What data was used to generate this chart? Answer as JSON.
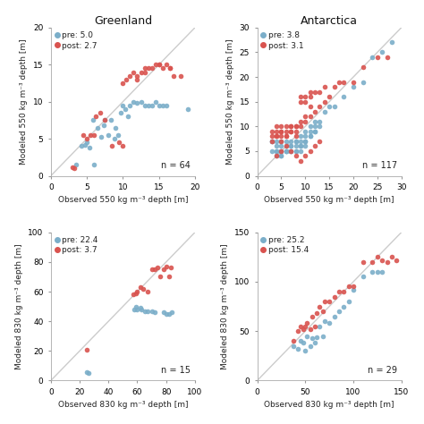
{
  "pre_color": "#7baec9",
  "post_color": "#d9534f",
  "background": "#ffffff",
  "panels": [
    {
      "title": "Greenland",
      "pre_label": "pre: 5.0",
      "post_label": "post: 2.7",
      "n_label": "n = 64",
      "xlim": [
        0,
        20
      ],
      "ylim": [
        0,
        20
      ],
      "xticks": [
        0,
        5,
        10,
        15,
        20
      ],
      "yticks": [
        0,
        5,
        10,
        15,
        20
      ],
      "xlabel": "Observed 550 kg m⁻³ depth [m]",
      "ylabel": "Modeled 550 kg m⁻³ depth [m]",
      "pre_x": [
        3.5,
        4.2,
        4.8,
        5.0,
        5.3,
        5.8,
        6.0,
        6.5,
        7.0,
        7.3,
        7.5,
        8.0,
        8.3,
        8.8,
        9.0,
        9.3,
        9.7,
        10.0,
        10.3,
        10.7,
        11.0,
        11.5,
        12.0,
        12.5,
        13.0,
        13.5,
        14.0,
        14.5,
        15.0,
        15.5,
        16.0,
        19.0
      ],
      "pre_y": [
        1.5,
        4.0,
        4.2,
        4.5,
        3.8,
        7.5,
        1.5,
        6.5,
        5.2,
        6.8,
        7.5,
        5.5,
        7.5,
        5.0,
        6.5,
        5.5,
        8.5,
        9.5,
        9.0,
        8.0,
        9.5,
        10.0,
        9.8,
        10.0,
        9.5,
        9.5,
        9.5,
        10.0,
        9.5,
        9.5,
        9.5,
        9.0
      ],
      "post_x": [
        3.0,
        3.2,
        4.5,
        5.0,
        5.5,
        6.2,
        6.8,
        7.5,
        8.5,
        9.5,
        10.0,
        10.5,
        11.0,
        11.5,
        12.0,
        12.5,
        13.0,
        13.5,
        14.0,
        14.5,
        15.0,
        15.5,
        16.0,
        16.5,
        17.0,
        18.0,
        10.0,
        12.0,
        13.0,
        15.0,
        16.5,
        6.0
      ],
      "post_y": [
        1.2,
        1.0,
        5.5,
        5.0,
        5.5,
        8.0,
        8.5,
        7.5,
        4.0,
        4.5,
        12.5,
        13.0,
        13.5,
        14.0,
        13.5,
        14.0,
        14.0,
        14.5,
        14.5,
        15.0,
        15.0,
        14.5,
        15.0,
        14.5,
        13.5,
        13.5,
        4.0,
        13.0,
        14.5,
        15.0,
        14.5,
        5.5
      ]
    },
    {
      "title": "Antarctica",
      "pre_label": "pre: 3.8",
      "post_label": "post: 3.1",
      "n_label": "n = 117",
      "xlim": [
        0,
        30
      ],
      "ylim": [
        0,
        30
      ],
      "xticks": [
        0,
        5,
        10,
        15,
        20,
        25,
        30
      ],
      "yticks": [
        0,
        5,
        10,
        15,
        20,
        25,
        30
      ],
      "xlabel": "Observed 550 kg m⁻³ depth [m]",
      "ylabel": "Modeled 550 kg m⁻³ depth [m]",
      "pre_x": [
        3,
        3,
        4,
        4,
        4,
        5,
        5,
        5,
        5,
        6,
        6,
        6,
        7,
        7,
        7,
        8,
        8,
        8,
        9,
        9,
        9,
        10,
        10,
        10,
        11,
        11,
        12,
        12,
        13,
        14,
        15,
        16,
        18,
        20,
        22,
        24,
        26,
        28,
        4,
        5,
        6,
        7,
        8,
        9,
        10,
        11,
        12,
        13,
        3,
        4,
        5,
        6,
        7,
        8,
        9,
        10,
        11,
        12
      ],
      "pre_y": [
        5,
        7,
        5,
        6,
        7,
        4,
        5,
        6,
        7,
        5,
        6,
        7,
        5,
        6,
        7,
        5,
        6,
        7,
        5,
        6,
        7,
        6,
        7,
        8,
        8,
        9,
        9,
        10,
        11,
        13,
        14,
        14,
        16,
        18,
        19,
        24,
        25,
        27,
        4,
        4,
        5,
        5,
        5,
        6,
        7,
        8,
        9,
        10,
        7,
        5,
        5,
        5,
        6,
        7,
        8,
        9,
        10,
        11
      ],
      "post_x": [
        3,
        3,
        4,
        4,
        5,
        5,
        5,
        6,
        6,
        7,
        7,
        8,
        8,
        9,
        9,
        10,
        10,
        11,
        11,
        12,
        13,
        14,
        15,
        16,
        17,
        18,
        20,
        22,
        25,
        27,
        4,
        5,
        6,
        7,
        8,
        9,
        10,
        11,
        12,
        13,
        14,
        3,
        4,
        5,
        6,
        7,
        8,
        9,
        10,
        11,
        4,
        5,
        6,
        7,
        8,
        9,
        10,
        11,
        12,
        13
      ],
      "post_y": [
        8,
        9,
        9,
        10,
        8,
        9,
        10,
        9,
        10,
        9,
        10,
        8,
        9,
        15,
        16,
        15,
        16,
        16,
        17,
        17,
        17,
        18,
        16,
        18,
        19,
        19,
        19,
        22,
        24,
        24,
        8,
        9,
        8,
        10,
        10,
        10,
        11,
        12,
        13,
        14,
        15,
        7,
        8,
        7,
        8,
        9,
        10,
        11,
        12,
        14,
        4,
        5,
        6,
        5,
        4,
        3,
        4,
        5,
        6,
        7
      ]
    },
    {
      "title": null,
      "pre_label": "pre: 22.4",
      "post_label": "post: 3.7",
      "n_label": "n = 15",
      "xlim": [
        0,
        100
      ],
      "ylim": [
        0,
        100
      ],
      "xticks": [
        0,
        20,
        40,
        60,
        80,
        100
      ],
      "yticks": [
        0,
        20,
        40,
        60,
        80,
        100
      ],
      "xlabel": "Observed 830 kg m⁻³ depth [m]",
      "ylabel": "Modeled 830 kg m⁻³ depth [m]",
      "pre_x": [
        25,
        26,
        58,
        59,
        60,
        62,
        63,
        65,
        67,
        70,
        72,
        78,
        80,
        82,
        84
      ],
      "pre_y": [
        6,
        5,
        48,
        50,
        48,
        49,
        48,
        47,
        47,
        47,
        46,
        46,
        45,
        45,
        46
      ],
      "post_x": [
        25,
        57,
        59,
        60,
        62,
        64,
        67,
        70,
        72,
        74,
        76,
        78,
        80,
        82,
        83
      ],
      "post_y": [
        21,
        58,
        59,
        60,
        63,
        62,
        60,
        75,
        75,
        76,
        70,
        75,
        77,
        70,
        76
      ]
    },
    {
      "title": null,
      "pre_label": "pre: 25.2",
      "post_label": "post: 15.4",
      "n_label": "n = 29",
      "xlim": [
        0,
        150
      ],
      "ylim": [
        0,
        150
      ],
      "xticks": [
        0,
        50,
        100,
        150
      ],
      "yticks": [
        0,
        50,
        100,
        150
      ],
      "xlabel": "Observed 830 kg m⁻³ depth [m]",
      "ylabel": "Modeled 830 kg m⁻³ depth [m]",
      "pre_x": [
        38,
        42,
        45,
        48,
        50,
        52,
        55,
        57,
        60,
        62,
        65,
        68,
        70,
        75,
        80,
        85,
        90,
        95,
        100,
        110,
        120,
        125,
        130
      ],
      "pre_y": [
        35,
        32,
        40,
        38,
        30,
        45,
        35,
        43,
        38,
        44,
        55,
        45,
        60,
        58,
        65,
        70,
        75,
        80,
        92,
        105,
        110,
        110,
        110
      ],
      "post_x": [
        38,
        42,
        45,
        48,
        50,
        52,
        55,
        57,
        60,
        62,
        65,
        68,
        70,
        75,
        80,
        85,
        90,
        95,
        100,
        110,
        120,
        125,
        130,
        135,
        140,
        145
      ],
      "post_y": [
        40,
        50,
        55,
        52,
        55,
        58,
        52,
        65,
        55,
        68,
        75,
        70,
        80,
        80,
        85,
        90,
        90,
        95,
        95,
        120,
        120,
        125,
        122,
        120,
        125,
        122
      ]
    }
  ]
}
